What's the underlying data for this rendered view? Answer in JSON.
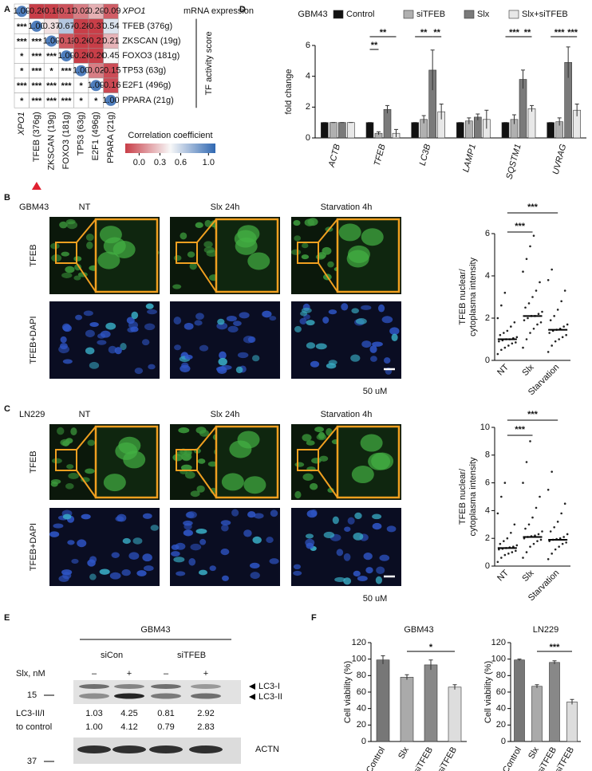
{
  "chart_data": [
    {
      "type": "heatmap",
      "subtitle": "mRNA expression",
      "axis_label": "TF activity score",
      "rows": [
        "XPO1",
        "TFEB (376g)",
        "ZKSCAN (19g)",
        "FOXO3 (181g)",
        "TP53 (63g)",
        "E2F1 (496g)",
        "PPARA (21g)"
      ],
      "columns": [
        "XPO1",
        "TFEB (376g)",
        "ZKSCAN (19g)",
        "FOXO3 (181g)",
        "TP53 (63g)",
        "E2F1 (496g)",
        "PPARA (21g)"
      ],
      "values": [
        [
          1,
          -0.2,
          -0.19,
          -0.13,
          0.02,
          0.2,
          -0.09
        ],
        [
          null,
          1,
          0.37,
          0.67,
          -0.28,
          -0.37,
          0.54
        ],
        [
          null,
          null,
          1,
          -0.11,
          -0.26,
          -0.21,
          0.21
        ],
        [
          null,
          null,
          null,
          1,
          -0.26,
          -0.26,
          0.45
        ],
        [
          null,
          null,
          null,
          null,
          1,
          0.02,
          -0.15
        ],
        [
          null,
          null,
          null,
          null,
          null,
          1,
          -0.16
        ],
        [
          null,
          null,
          null,
          null,
          null,
          null,
          1
        ]
      ],
      "value_labels": [
        [
          "1.00",
          "-0.20",
          "-0.19",
          "-0.13",
          "0.02",
          "0.20",
          "-0.09"
        ],
        [
          null,
          "1.00",
          "0.37",
          "0.67",
          "-0.28",
          "-0.37",
          "0.54"
        ],
        [
          null,
          null,
          "1.00",
          "-0.11",
          "-0.26",
          "-0.21",
          "0.21"
        ],
        [
          null,
          null,
          null,
          "1.00",
          "-0.26",
          "-0.26",
          "0.45"
        ],
        [
          null,
          null,
          null,
          null,
          "1.00",
          "0.02",
          "-0.15"
        ],
        [
          null,
          null,
          null,
          null,
          null,
          "1.00",
          "-0.16"
        ],
        [
          null,
          null,
          null,
          null,
          null,
          null,
          "1.00"
        ]
      ],
      "stars": [
        [
          null,
          null,
          null,
          null,
          null,
          null,
          null
        ],
        [
          "***",
          null,
          null,
          null,
          null,
          null,
          null
        ],
        [
          "***",
          "***",
          null,
          null,
          null,
          null,
          null
        ],
        [
          "*",
          "***",
          "***",
          null,
          null,
          null,
          null
        ],
        [
          "*",
          "***",
          "*",
          "***",
          null,
          null,
          null
        ],
        [
          "***",
          "***",
          "***",
          "***",
          "*",
          null,
          null
        ],
        [
          "*",
          "***",
          "***",
          "***",
          "*",
          "*",
          null
        ]
      ],
      "legend_title": "Correlation coefficient",
      "clim": [
        -0.2,
        1.1
      ],
      "cticks": [
        {
          "value": 0,
          "label": "0.0"
        },
        0.3,
        0.6,
        {
          "value": 1,
          "label": "1.0"
        }
      ]
    },
    {
      "type": "bar",
      "title": "GBM43",
      "y_label": "fold change",
      "categories": [
        "ACTB",
        "TFEB",
        "LC3B",
        "LAMP1",
        "SQSTM1",
        "UVRAG"
      ],
      "series": [
        {
          "name": "Control",
          "color": "#111111",
          "values": [
            1,
            1,
            1,
            1,
            1,
            1
          ],
          "errors": [
            0,
            0,
            0,
            0,
            0,
            0
          ]
        },
        {
          "name": "siTFEB",
          "color": "#b0b0b0",
          "values": [
            1,
            0.3,
            1.2,
            1.1,
            1.2,
            1.05
          ],
          "errors": [
            0,
            0.1,
            0.25,
            0.2,
            0.3,
            0.25
          ]
        },
        {
          "name": "Slx",
          "color": "#7a7a7a",
          "values": [
            1,
            1.85,
            4.4,
            1.35,
            3.8,
            4.9
          ],
          "errors": [
            0,
            0.25,
            1.3,
            0.2,
            0.6,
            1.0
          ]
        },
        {
          "name": "Slx+siTFEB",
          "color": "#e8e8e8",
          "values": [
            1,
            0.3,
            1.7,
            1.2,
            1.9,
            1.8
          ],
          "errors": [
            0,
            0.25,
            0.5,
            0.6,
            0.2,
            0.4
          ]
        }
      ],
      "ylim": [
        0,
        6
      ],
      "yticks": [
        0,
        2,
        4,
        6
      ],
      "annotations": [
        "**",
        "**",
        "**",
        "**",
        "***",
        "**",
        "***",
        "***"
      ]
    },
    {
      "type": "strip",
      "y_label": [
        "TFEB nuclear/",
        "cytoplasma intensity"
      ],
      "categories": [
        "NT",
        "Slx",
        "Starvation"
      ],
      "values": [
        [
          0.3,
          0.5,
          0.6,
          0.7,
          0.8,
          0.85,
          0.9,
          0.95,
          1.0,
          1.0,
          1.05,
          1.1,
          1.2,
          1.3,
          1.4,
          1.6,
          1.8,
          2.0,
          2.6,
          3.2
        ],
        [
          0.6,
          1.0,
          1.3,
          1.5,
          1.7,
          1.8,
          1.9,
          2.0,
          2.1,
          2.1,
          2.2,
          2.3,
          2.5,
          2.7,
          3.0,
          3.3,
          3.7,
          4.2,
          4.8,
          5.4,
          5.9
        ],
        [
          0.4,
          0.7,
          0.9,
          1.0,
          1.1,
          1.2,
          1.3,
          1.4,
          1.45,
          1.5,
          1.6,
          1.7,
          1.9,
          2.1,
          2.4,
          2.8,
          3.3,
          3.8,
          4.3
        ]
      ],
      "medians": [
        1.0,
        2.1,
        1.45
      ],
      "ylim": [
        0,
        6
      ],
      "yticks": [
        0,
        2,
        4,
        6
      ],
      "annotations": [
        "***",
        "***"
      ]
    },
    {
      "type": "strip",
      "y_label": [
        "TFEB nuclear/",
        "cytoplasma intensity"
      ],
      "categories": [
        "NT",
        "Slx",
        "Starvation"
      ],
      "values": [
        [
          0.3,
          0.6,
          0.8,
          0.9,
          1.0,
          1.1,
          1.2,
          1.25,
          1.3,
          1.35,
          1.4,
          1.5,
          1.6,
          1.8,
          2.0,
          2.4,
          3.0,
          3.8,
          5.0,
          6.0
        ],
        [
          0.6,
          1.0,
          1.4,
          1.6,
          1.8,
          1.9,
          2.0,
          2.1,
          2.15,
          2.2,
          2.3,
          2.5,
          2.7,
          3.0,
          3.5,
          4.2,
          5.0,
          6.0,
          7.5,
          9.0
        ],
        [
          0.5,
          0.9,
          1.2,
          1.4,
          1.6,
          1.7,
          1.8,
          1.9,
          1.95,
          2.0,
          2.1,
          2.3,
          2.5,
          2.8,
          3.2,
          3.8,
          4.5,
          5.5,
          6.8
        ]
      ],
      "medians": [
        1.3,
        2.1,
        1.9
      ],
      "ylim": [
        0,
        10
      ],
      "yticks": [
        0,
        2,
        4,
        6,
        8,
        10
      ],
      "annotations": [
        "***",
        "***"
      ]
    },
    {
      "type": "bar",
      "title": "GBM43",
      "y_label": "Cell viability (%)",
      "categories": [
        "Control",
        "Slx",
        "siTFEB",
        "Slx+siTFEB"
      ],
      "values": [
        99,
        78,
        93,
        66
      ],
      "errors": [
        5,
        3,
        6,
        3
      ],
      "colors": [
        "#777777",
        "#aaaaaa",
        "#888888",
        "#dddddd"
      ],
      "ylim": [
        0,
        120
      ],
      "yticks": [
        0,
        20,
        40,
        60,
        80,
        100,
        120
      ],
      "annotations": [
        "*"
      ]
    },
    {
      "type": "bar",
      "title": "LN229",
      "y_label": "Cell viability (%)",
      "categories": [
        "Control",
        "Slx",
        "siTFEB",
        "Slx+siTFEB"
      ],
      "values": [
        99,
        67,
        96,
        48
      ],
      "errors": [
        1,
        2,
        2,
        3
      ],
      "colors": [
        "#777777",
        "#aaaaaa",
        "#888888",
        "#dddddd"
      ],
      "ylim": [
        0,
        120
      ],
      "yticks": [
        0,
        20,
        40,
        60,
        80,
        100,
        120
      ],
      "annotations": [
        "***"
      ]
    }
  ],
  "panels": {
    "labels": [
      "A",
      "B",
      "C",
      "D",
      "E",
      "F"
    ],
    "b": {
      "cell_line": "GBM43",
      "conditions": [
        "NT",
        "Slx 24h",
        "Starvation 4h"
      ],
      "rows": [
        "TFEB",
        "TFEB+DAPI"
      ],
      "scale_bar": "50 uM"
    },
    "c": {
      "cell_line": "LN229",
      "conditions": [
        "NT",
        "Slx 24h",
        "Starvation 4h"
      ],
      "rows": [
        "TFEB",
        "TFEB+DAPI"
      ],
      "scale_bar": "50 uM"
    },
    "e": {
      "cell_line": "GBM43",
      "groups": [
        "siCon",
        "siTFEB"
      ],
      "treatment_label": "Slx, nM",
      "treatment": [
        "–",
        "+",
        "–",
        "+"
      ],
      "bands": [
        "LC3-I",
        "LC3-II"
      ],
      "markers": [
        "15",
        "37"
      ],
      "ratio_label": [
        "LC3-II/I",
        "to control"
      ],
      "ratios": [
        [
          "1.03",
          "4.25",
          "0.81",
          "2.92"
        ],
        [
          "1.00",
          "4.12",
          "0.79",
          "2.83"
        ]
      ],
      "loading": "ACTN"
    }
  }
}
